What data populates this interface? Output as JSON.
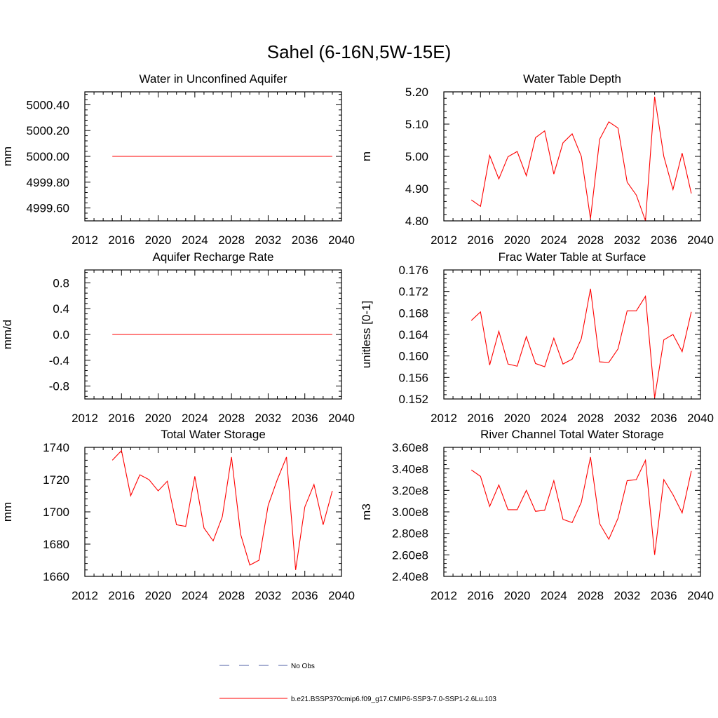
{
  "figure": {
    "title": "Sahel (6-16N,5W-15E)",
    "line_color": "#ff0000",
    "obs_color": "#4f5fa5"
  },
  "legend": {
    "placement": "bottom-center",
    "obs_label": "No Obs",
    "model_label": "b.e21.BSSP370cmip6.f09_g17.CMIP6-SSP3-7.0-SSP1-2.6Lu.103"
  },
  "chart_data": [
    {
      "type": "line",
      "title": "Water in Unconfined Aquifer",
      "ylabel": "mm",
      "xlim": [
        2012,
        2040
      ],
      "xticks": [
        2012,
        2016,
        2020,
        2024,
        2028,
        2032,
        2036,
        2040
      ],
      "xtick_labels": [
        "2012",
        "2016",
        "2020",
        "2024",
        "2028",
        "2032",
        "2036",
        "2040"
      ],
      "ylim": [
        4999.5,
        5000.5
      ],
      "yticks": [
        4999.6,
        4999.8,
        5000.0,
        5000.2,
        5000.4
      ],
      "ytick_labels": [
        "4999.60",
        "4999.80",
        "5000.00",
        "5000.20",
        "5000.40"
      ],
      "x": [
        2015,
        2016,
        2017,
        2018,
        2019,
        2020,
        2021,
        2022,
        2023,
        2024,
        2025,
        2026,
        2027,
        2028,
        2029,
        2030,
        2031,
        2032,
        2033,
        2034,
        2035,
        2036,
        2037,
        2038,
        2039
      ],
      "values": [
        5000.0,
        5000.0,
        5000.0,
        5000.0,
        5000.0,
        5000.0,
        5000.0,
        5000.0,
        5000.0,
        5000.0,
        5000.0,
        5000.0,
        5000.0,
        5000.0,
        5000.0,
        5000.0,
        5000.0,
        5000.0,
        5000.0,
        5000.0,
        5000.0,
        5000.0,
        5000.0,
        5000.0,
        5000.0
      ]
    },
    {
      "type": "line",
      "title": "Water Table Depth",
      "ylabel": "m",
      "xlim": [
        2012,
        2040
      ],
      "xticks": [
        2012,
        2016,
        2020,
        2024,
        2028,
        2032,
        2036,
        2040
      ],
      "xtick_labels": [
        "2012",
        "2016",
        "2020",
        "2024",
        "2028",
        "2032",
        "2036",
        "2040"
      ],
      "ylim": [
        4.8,
        5.2
      ],
      "yticks": [
        4.8,
        4.9,
        5.0,
        5.1,
        5.2
      ],
      "ytick_labels": [
        "4.80",
        "4.90",
        "5.00",
        "5.10",
        "5.20"
      ],
      "x": [
        2015,
        2016,
        2017,
        2018,
        2019,
        2020,
        2021,
        2022,
        2023,
        2024,
        2025,
        2026,
        2027,
        2028,
        2029,
        2030,
        2031,
        2032,
        2033,
        2034,
        2035,
        2036,
        2037,
        2038,
        2039
      ],
      "values": [
        4.865,
        4.845,
        5.003,
        4.93,
        4.999,
        5.015,
        4.94,
        5.058,
        5.079,
        4.945,
        5.042,
        5.07,
        5.0,
        4.807,
        5.053,
        5.107,
        5.088,
        4.92,
        4.88,
        4.8,
        5.185,
        5.0,
        4.897,
        5.01,
        4.885
      ]
    },
    {
      "type": "line",
      "title": "Aquifer Recharge Rate",
      "ylabel": "mm/d",
      "xlim": [
        2012,
        2040
      ],
      "xticks": [
        2012,
        2016,
        2020,
        2024,
        2028,
        2032,
        2036,
        2040
      ],
      "xtick_labels": [
        "2012",
        "2016",
        "2020",
        "2024",
        "2028",
        "2032",
        "2036",
        "2040"
      ],
      "ylim": [
        -1.0,
        1.0
      ],
      "yticks": [
        -0.8,
        -0.4,
        0.0,
        0.4,
        0.8
      ],
      "ytick_labels": [
        "-0.8",
        "-0.4",
        "0.0",
        "0.4",
        "0.8"
      ],
      "x": [
        2015,
        2016,
        2017,
        2018,
        2019,
        2020,
        2021,
        2022,
        2023,
        2024,
        2025,
        2026,
        2027,
        2028,
        2029,
        2030,
        2031,
        2032,
        2033,
        2034,
        2035,
        2036,
        2037,
        2038,
        2039
      ],
      "values": [
        0,
        0,
        0,
        0,
        0,
        0,
        0,
        0,
        0,
        0,
        0,
        0,
        0,
        0,
        0,
        0,
        0,
        0,
        0,
        0,
        0,
        0,
        0,
        0,
        0
      ]
    },
    {
      "type": "line",
      "title": "Frac Water Table at Surface",
      "ylabel": "unitless [0-1]",
      "xlim": [
        2012,
        2040
      ],
      "xticks": [
        2012,
        2016,
        2020,
        2024,
        2028,
        2032,
        2036,
        2040
      ],
      "xtick_labels": [
        "2012",
        "2016",
        "2020",
        "2024",
        "2028",
        "2032",
        "2036",
        "2040"
      ],
      "ylim": [
        0.152,
        0.176
      ],
      "yticks": [
        0.152,
        0.156,
        0.16,
        0.164,
        0.168,
        0.172,
        0.176
      ],
      "ytick_labels": [
        "0.152",
        "0.156",
        "0.160",
        "0.164",
        "0.168",
        "0.172",
        "0.176"
      ],
      "x": [
        2015,
        2016,
        2017,
        2018,
        2019,
        2020,
        2021,
        2022,
        2023,
        2024,
        2025,
        2026,
        2027,
        2028,
        2029,
        2030,
        2031,
        2032,
        2033,
        2034,
        2035,
        2036,
        2037,
        2038,
        2039
      ],
      "values": [
        0.1666,
        0.1682,
        0.1583,
        0.1646,
        0.1585,
        0.1581,
        0.1636,
        0.1586,
        0.158,
        0.1633,
        0.1585,
        0.1594,
        0.1632,
        0.1725,
        0.1589,
        0.1588,
        0.1613,
        0.1684,
        0.1684,
        0.1711,
        0.1522,
        0.163,
        0.164,
        0.1608,
        0.1682
      ]
    },
    {
      "type": "line",
      "title": "Total Water Storage",
      "ylabel": "mm",
      "xlim": [
        2012,
        2040
      ],
      "xticks": [
        2012,
        2016,
        2020,
        2024,
        2028,
        2032,
        2036,
        2040
      ],
      "xtick_labels": [
        "2012",
        "2016",
        "2020",
        "2024",
        "2028",
        "2032",
        "2036",
        "2040"
      ],
      "ylim": [
        1660,
        1740
      ],
      "yticks": [
        1660,
        1680,
        1700,
        1720,
        1740
      ],
      "ytick_labels": [
        "1660",
        "1680",
        "1700",
        "1720",
        "1740"
      ],
      "x": [
        2015,
        2016,
        2017,
        2018,
        2019,
        2020,
        2021,
        2022,
        2023,
        2024,
        2025,
        2026,
        2027,
        2028,
        2029,
        2030,
        2031,
        2032,
        2033,
        2034,
        2035,
        2036,
        2037,
        2038,
        2039
      ],
      "values": [
        1732,
        1738,
        1710,
        1723,
        1720,
        1713,
        1719,
        1692,
        1691,
        1722,
        1690,
        1682,
        1697,
        1734,
        1686,
        1667,
        1670,
        1704,
        1720,
        1734,
        1664,
        1703,
        1717,
        1692,
        1713
      ]
    },
    {
      "type": "line",
      "title": "River Channel Total Water Storage",
      "ylabel": "m3",
      "xlim": [
        2012,
        2040
      ],
      "xticks": [
        2012,
        2016,
        2020,
        2024,
        2028,
        2032,
        2036,
        2040
      ],
      "xtick_labels": [
        "2012",
        "2016",
        "2020",
        "2024",
        "2028",
        "2032",
        "2036",
        "2040"
      ],
      "ylim": [
        240000000,
        360000000
      ],
      "yticks": [
        240000000,
        260000000,
        280000000,
        300000000,
        320000000,
        340000000,
        360000000
      ],
      "ytick_labels": [
        "2.40e8",
        "2.60e8",
        "2.80e8",
        "3.00e8",
        "3.20e8",
        "3.40e8",
        "3.60e8"
      ],
      "x": [
        2015,
        2016,
        2017,
        2018,
        2019,
        2020,
        2021,
        2022,
        2023,
        2024,
        2025,
        2026,
        2027,
        2028,
        2029,
        2030,
        2031,
        2032,
        2033,
        2034,
        2035,
        2036,
        2037,
        2038,
        2039
      ],
      "values": [
        339000000,
        333000000,
        305000000,
        325000000,
        302000000,
        302000000,
        320000000,
        300500000,
        301500000,
        329000000,
        293000000,
        290000000,
        309000000,
        351000000,
        289000000,
        274500000,
        294000000,
        329000000,
        330000000,
        348000000,
        260000000,
        330000000,
        316000000,
        299000000,
        338000000
      ]
    }
  ]
}
